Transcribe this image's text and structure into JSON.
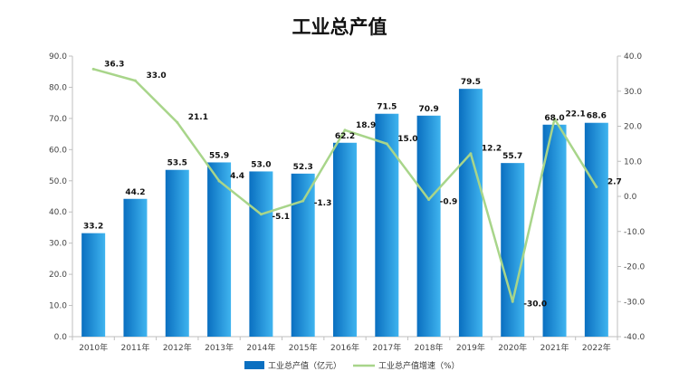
{
  "chart_data": {
    "type": "bar+line",
    "title": "工业总产值",
    "categories": [
      "2010年",
      "2011年",
      "2012年",
      "2013年",
      "2014年",
      "2015年",
      "2016年",
      "2017年",
      "2018年",
      "2019年",
      "2020年",
      "2021年",
      "2022年"
    ],
    "series": [
      {
        "name": "工业总产值（亿元）",
        "type": "bar",
        "axis": "left",
        "values": [
          33.2,
          44.2,
          53.5,
          55.9,
          53.0,
          52.3,
          62.2,
          71.5,
          70.9,
          79.5,
          55.7,
          68.0,
          68.6
        ],
        "labels": [
          "33.2",
          "44.2",
          "53.5",
          "55.9",
          "53.0",
          "52.3",
          "62.2",
          "71.5",
          "70.9",
          "79.5",
          "55.7",
          "68.0",
          "68.6"
        ]
      },
      {
        "name": "工业总产值增速（%）",
        "type": "line",
        "axis": "right",
        "values": [
          36.3,
          33.0,
          21.1,
          4.4,
          -5.1,
          -1.3,
          18.9,
          15.0,
          -0.9,
          12.2,
          -30.0,
          22.1,
          2.7
        ],
        "labels": [
          "36.3",
          "33.0",
          "21.1",
          "4.4",
          "-5.1",
          "-1.3",
          "18.9",
          "15.0",
          "-0.9",
          "12.2",
          "-30.0",
          "22.1",
          "2.7"
        ]
      }
    ],
    "y_left": {
      "min": 0,
      "max": 90,
      "step": 10,
      "ticks": [
        "0.0",
        "10.0",
        "20.0",
        "30.0",
        "40.0",
        "50.0",
        "60.0",
        "70.0",
        "80.0",
        "90.0"
      ]
    },
    "y_right": {
      "min": -40,
      "max": 40,
      "step": 10,
      "ticks": [
        "-40.0",
        "-30.0",
        "-20.0",
        "-10.0",
        "0.0",
        "10.0",
        "20.0",
        "30.0",
        "40.0"
      ]
    },
    "grid": false,
    "legend_position": "bottom",
    "colors": {
      "bar_top": "#3fb4ef",
      "bar_bottom": "#0a6fc0",
      "line": "#a8d58a",
      "axis": "#bfbfbf"
    }
  }
}
